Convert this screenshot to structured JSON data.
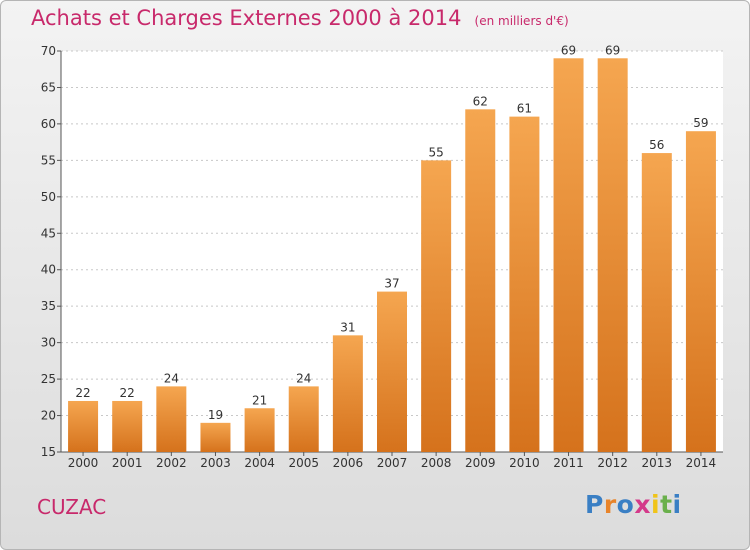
{
  "chart_data": {
    "type": "bar",
    "title": "Achats et Charges Externes 2000 à 2014",
    "subtitle": "(en milliers d'€)",
    "categories": [
      "2000",
      "2001",
      "2002",
      "2003",
      "2004",
      "2005",
      "2006",
      "2007",
      "2008",
      "2009",
      "2010",
      "2011",
      "2012",
      "2013",
      "2014"
    ],
    "values": [
      22,
      22,
      24,
      19,
      21,
      24,
      31,
      37,
      55,
      62,
      61,
      69,
      69,
      56,
      59
    ],
    "ylim": [
      15,
      70
    ],
    "yticks": [
      15,
      20,
      25,
      30,
      35,
      40,
      45,
      50,
      55,
      60,
      65,
      70
    ],
    "grid": true,
    "bar_color_top": "#f5a650",
    "bar_color_bottom": "#d5721c"
  },
  "footer": {
    "town": "CUZAC",
    "logo_text": "Proxiti",
    "logo_colors": [
      "#3a7fc4",
      "#e8842a",
      "#3a7fc4",
      "#d43a8a",
      "#f0c419",
      "#6ab04c",
      "#3a7fc4"
    ]
  }
}
